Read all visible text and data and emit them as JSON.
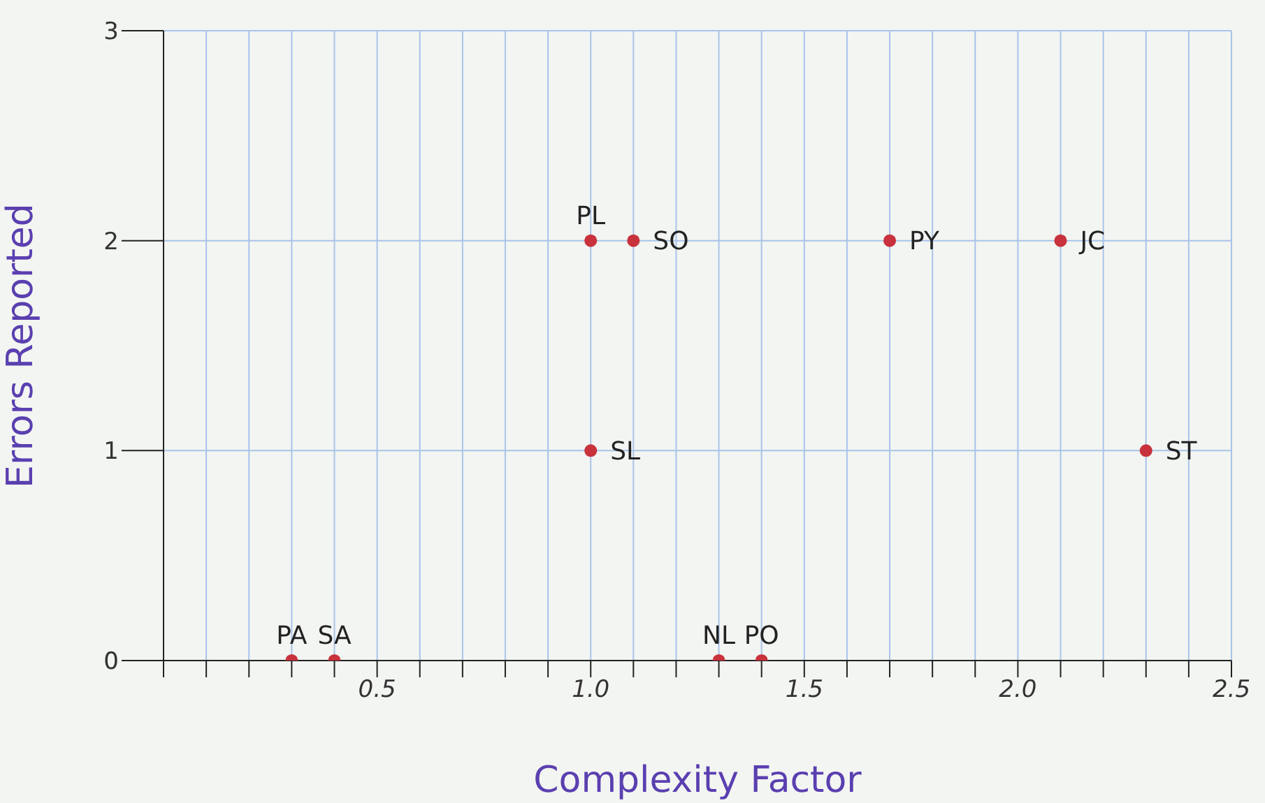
{
  "chart_data": {
    "type": "scatter",
    "xlabel": "Complexity Factor",
    "ylabel": "Errors Reported",
    "series": [
      {
        "color": "#c8323c",
        "x": [
          0.3,
          0.4,
          1.0,
          1.1,
          1.7,
          2.1,
          1.0,
          2.3,
          1.3,
          1.4
        ],
        "values": [
          0,
          0,
          2,
          2,
          2,
          2,
          1,
          1,
          0,
          0
        ]
      }
    ],
    "annotations": [
      {
        "text": "PA",
        "x": 0.3,
        "y": 0
      },
      {
        "text": "SA",
        "x": 0.4,
        "y": 0
      },
      {
        "text": "PL",
        "x": 1.0,
        "y": 2
      },
      {
        "text": "SO",
        "x": 1.1,
        "y": 2
      },
      {
        "text": "PY",
        "x": 1.7,
        "y": 2
      },
      {
        "text": "JC",
        "x": 2.1,
        "y": 2
      },
      {
        "text": "SL",
        "x": 1.0,
        "y": 1
      },
      {
        "text": "ST",
        "x": 2.3,
        "y": 1
      },
      {
        "text": "NL",
        "x": 1.3,
        "y": 0
      },
      {
        "text": "PO",
        "x": 1.4,
        "y": 0
      }
    ],
    "xlim": [
      0,
      2.5
    ],
    "xticks": [
      {
        "value": 0,
        "label": null
      },
      {
        "value": 0.1,
        "label": null
      },
      {
        "value": 0.2,
        "label": null
      },
      {
        "value": 0.3,
        "label": null
      },
      {
        "value": 0.4,
        "label": null
      },
      0.5,
      {
        "value": 0.6,
        "label": null
      },
      {
        "value": 0.7,
        "label": null
      },
      {
        "value": 0.8,
        "label": null
      },
      {
        "value": 0.9,
        "label": null
      },
      {
        "value": 1.0,
        "label": "1.0"
      },
      {
        "value": 1.1,
        "label": null
      },
      {
        "value": 1.2,
        "label": null
      },
      {
        "value": 1.3,
        "label": null
      },
      {
        "value": 1.4,
        "label": null
      },
      1.5,
      {
        "value": 1.6,
        "label": null
      },
      {
        "value": 1.7,
        "label": null
      },
      {
        "value": 1.8,
        "label": null
      },
      {
        "value": 1.9,
        "label": null
      },
      {
        "value": 2.0,
        "label": "2.0"
      },
      {
        "value": 2.1,
        "label": null
      },
      {
        "value": 2.2,
        "label": null
      },
      {
        "value": 2.3,
        "label": null
      },
      {
        "value": 2.4,
        "label": null
      },
      2.5
    ],
    "ylim": [
      0,
      3
    ],
    "yticks": [
      0,
      1,
      2,
      3
    ],
    "grid": true,
    "marker": "circle",
    "legend": false
  }
}
